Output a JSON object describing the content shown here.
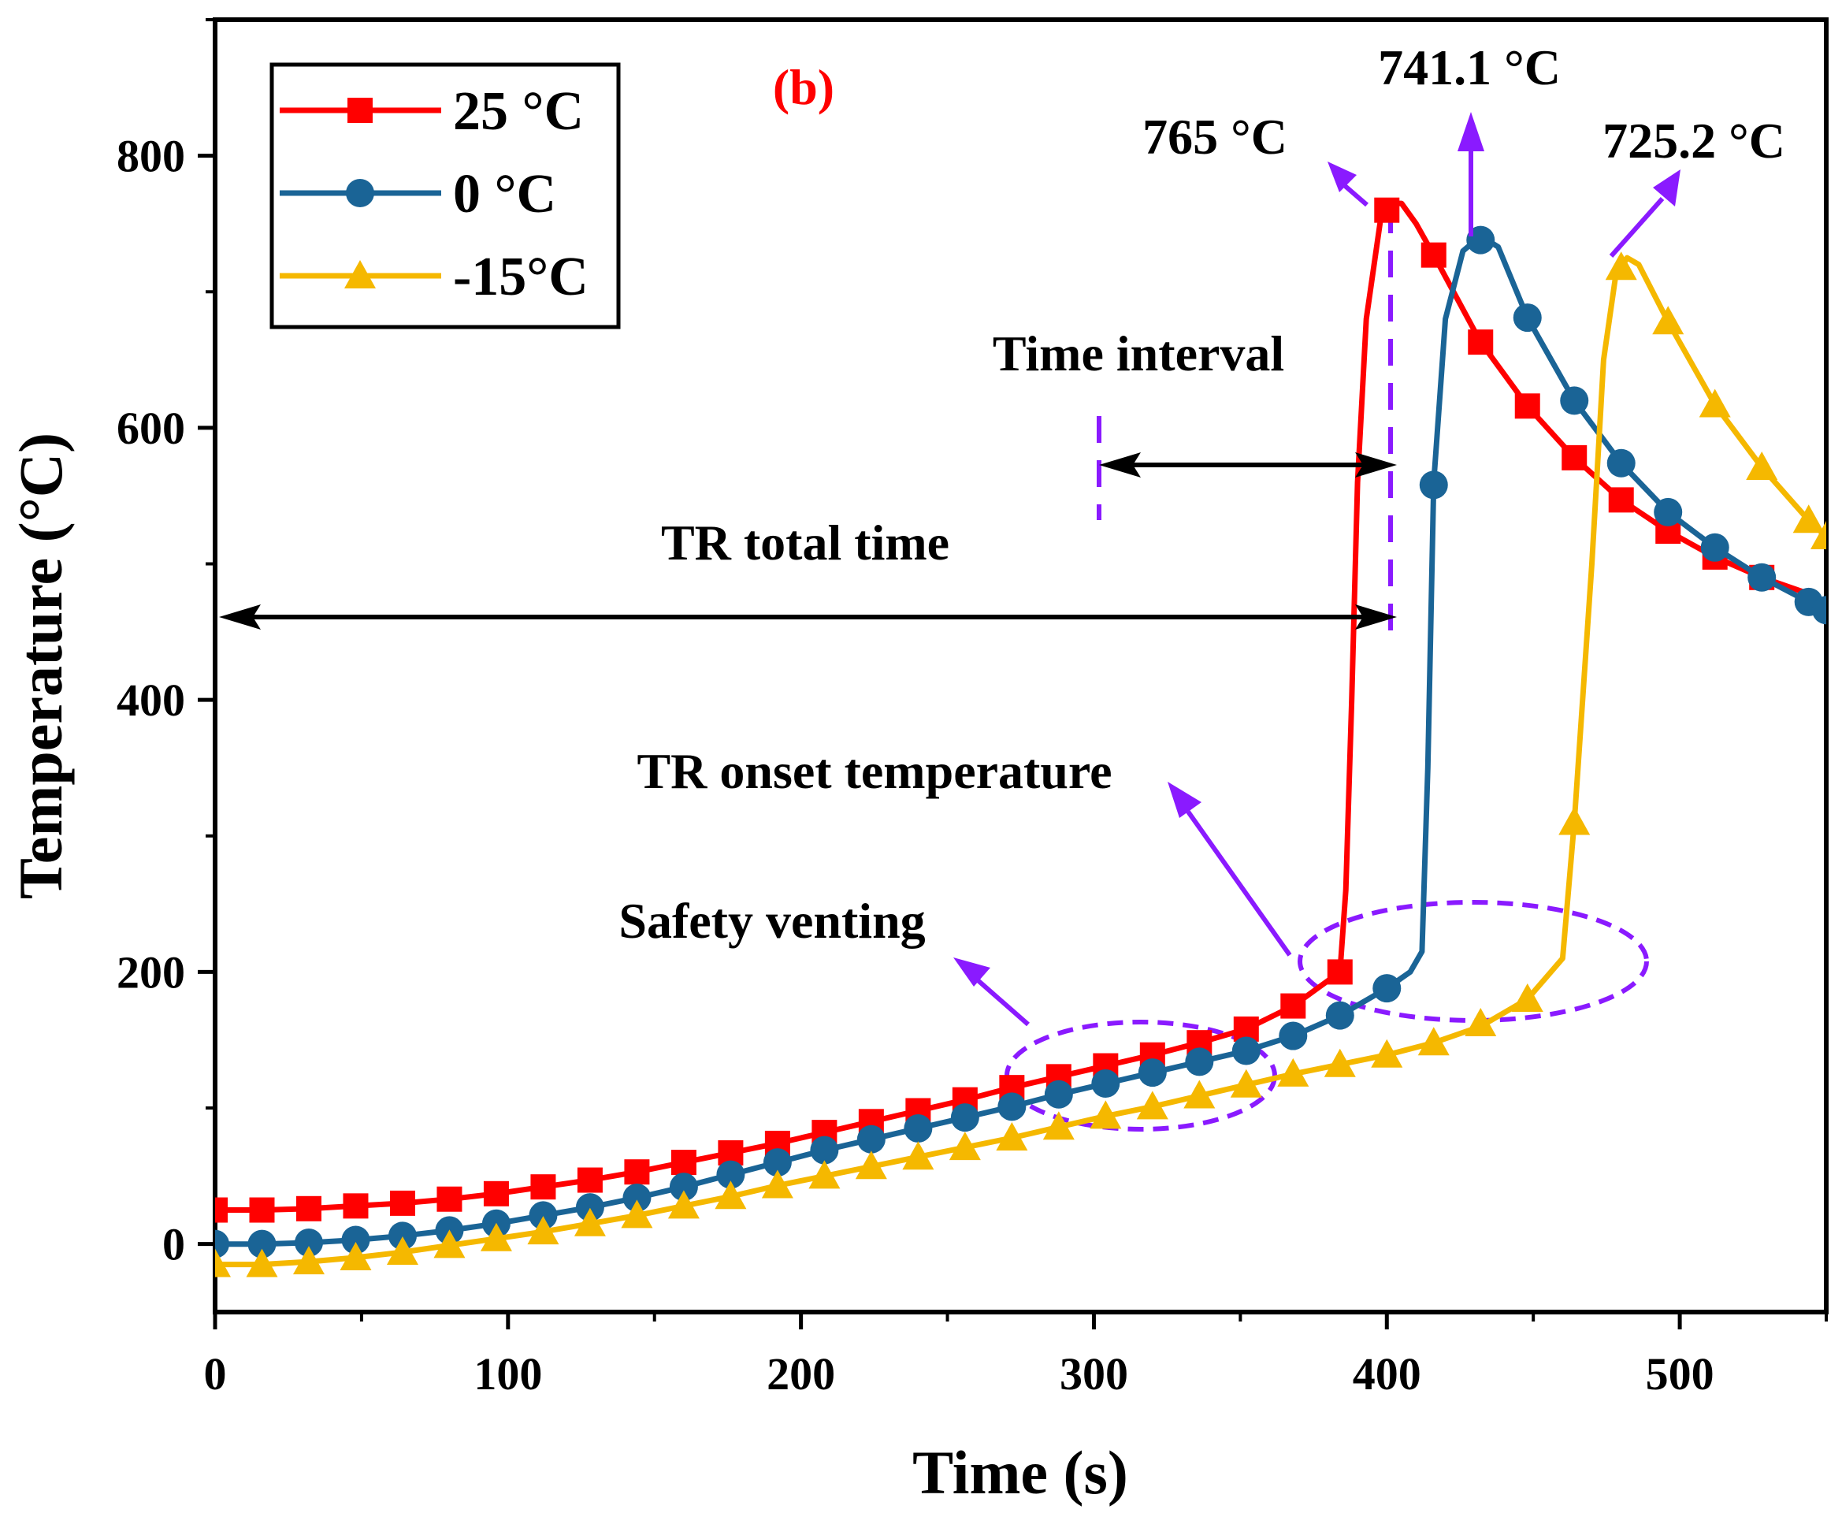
{
  "chart_data": {
    "type": "line",
    "panel_label": "(b)",
    "xlabel": "Time (s)",
    "ylabel": "Temperature (°C)",
    "xlim": [
      0,
      550
    ],
    "ylim": [
      -50,
      900
    ],
    "x_ticks": [
      0,
      100,
      200,
      300,
      400,
      500
    ],
    "y_ticks": [
      0,
      200,
      400,
      600,
      800
    ],
    "legend_position": "top-left",
    "grid": false,
    "series": [
      {
        "name": "25 °C",
        "color": "#ff0000",
        "marker": "square",
        "curve": [
          [
            0,
            25
          ],
          [
            16,
            25
          ],
          [
            32,
            26
          ],
          [
            48,
            28
          ],
          [
            64,
            30
          ],
          [
            80,
            33
          ],
          [
            96,
            37
          ],
          [
            112,
            42
          ],
          [
            128,
            47
          ],
          [
            144,
            53
          ],
          [
            160,
            60
          ],
          [
            176,
            67
          ],
          [
            192,
            74
          ],
          [
            208,
            82
          ],
          [
            224,
            90
          ],
          [
            240,
            98
          ],
          [
            256,
            106
          ],
          [
            272,
            115
          ],
          [
            288,
            123
          ],
          [
            304,
            131
          ],
          [
            320,
            139
          ],
          [
            336,
            148
          ],
          [
            352,
            158
          ],
          [
            368,
            175
          ],
          [
            384,
            200
          ],
          [
            386,
            260
          ],
          [
            388,
            400
          ],
          [
            390,
            560
          ],
          [
            393,
            680
          ],
          [
            398,
            755
          ],
          [
            402,
            765
          ],
          [
            405,
            765
          ],
          [
            410,
            750
          ],
          [
            416,
            727
          ],
          [
            432,
            663
          ],
          [
            448,
            616
          ],
          [
            464,
            578
          ],
          [
            480,
            547
          ],
          [
            496,
            524
          ],
          [
            512,
            505
          ],
          [
            528,
            490
          ],
          [
            544,
            478
          ]
        ],
        "markers": [
          [
            0,
            25
          ],
          [
            16,
            25
          ],
          [
            32,
            26
          ],
          [
            48,
            28
          ],
          [
            64,
            30
          ],
          [
            80,
            33
          ],
          [
            96,
            37
          ],
          [
            112,
            42
          ],
          [
            128,
            47
          ],
          [
            144,
            53
          ],
          [
            160,
            60
          ],
          [
            176,
            67
          ],
          [
            192,
            74
          ],
          [
            208,
            82
          ],
          [
            224,
            90
          ],
          [
            240,
            98
          ],
          [
            256,
            106
          ],
          [
            272,
            115
          ],
          [
            288,
            123
          ],
          [
            304,
            131
          ],
          [
            320,
            139
          ],
          [
            336,
            148
          ],
          [
            352,
            158
          ],
          [
            368,
            175
          ],
          [
            384,
            200
          ],
          [
            400,
            760
          ],
          [
            416,
            727
          ],
          [
            432,
            663
          ],
          [
            448,
            616
          ],
          [
            464,
            578
          ],
          [
            480,
            547
          ],
          [
            496,
            524
          ],
          [
            512,
            505
          ],
          [
            528,
            490
          ]
        ]
      },
      {
        "name": "0 °C",
        "color": "#1a6496",
        "marker": "circle",
        "curve": [
          [
            0,
            0
          ],
          [
            16,
            0
          ],
          [
            32,
            1
          ],
          [
            48,
            3
          ],
          [
            64,
            6
          ],
          [
            80,
            10
          ],
          [
            96,
            15
          ],
          [
            112,
            21
          ],
          [
            128,
            27
          ],
          [
            144,
            34
          ],
          [
            160,
            42
          ],
          [
            176,
            51
          ],
          [
            192,
            60
          ],
          [
            208,
            69
          ],
          [
            224,
            77
          ],
          [
            240,
            85
          ],
          [
            256,
            93
          ],
          [
            272,
            101
          ],
          [
            288,
            110
          ],
          [
            304,
            118
          ],
          [
            320,
            126
          ],
          [
            336,
            134
          ],
          [
            352,
            142
          ],
          [
            368,
            153
          ],
          [
            384,
            168
          ],
          [
            400,
            188
          ],
          [
            408,
            200
          ],
          [
            412,
            215
          ],
          [
            414,
            350
          ],
          [
            416,
            560
          ],
          [
            420,
            680
          ],
          [
            426,
            730
          ],
          [
            432,
            741
          ],
          [
            438,
            733
          ],
          [
            448,
            681
          ],
          [
            464,
            620
          ],
          [
            480,
            574
          ],
          [
            496,
            538
          ],
          [
            512,
            512
          ],
          [
            528,
            490
          ],
          [
            544,
            472
          ],
          [
            550,
            466
          ]
        ],
        "markers": [
          [
            0,
            0
          ],
          [
            16,
            0
          ],
          [
            32,
            1
          ],
          [
            48,
            3
          ],
          [
            64,
            6
          ],
          [
            80,
            10
          ],
          [
            96,
            15
          ],
          [
            112,
            21
          ],
          [
            128,
            27
          ],
          [
            144,
            34
          ],
          [
            160,
            42
          ],
          [
            176,
            51
          ],
          [
            192,
            60
          ],
          [
            208,
            69
          ],
          [
            224,
            77
          ],
          [
            240,
            85
          ],
          [
            256,
            93
          ],
          [
            272,
            101
          ],
          [
            288,
            110
          ],
          [
            304,
            118
          ],
          [
            320,
            126
          ],
          [
            336,
            134
          ],
          [
            352,
            142
          ],
          [
            368,
            153
          ],
          [
            384,
            168
          ],
          [
            400,
            188
          ],
          [
            416,
            558
          ],
          [
            432,
            738
          ],
          [
            448,
            681
          ],
          [
            464,
            620
          ],
          [
            480,
            574
          ],
          [
            496,
            538
          ],
          [
            512,
            512
          ],
          [
            528,
            490
          ],
          [
            544,
            472
          ],
          [
            550,
            466
          ]
        ]
      },
      {
        "name": "-15°C",
        "color": "#f5b800",
        "marker": "triangle",
        "curve": [
          [
            0,
            -15
          ],
          [
            16,
            -15
          ],
          [
            32,
            -13
          ],
          [
            48,
            -10
          ],
          [
            64,
            -6
          ],
          [
            80,
            -1
          ],
          [
            96,
            4
          ],
          [
            112,
            9
          ],
          [
            128,
            15
          ],
          [
            144,
            21
          ],
          [
            160,
            28
          ],
          [
            176,
            35
          ],
          [
            192,
            43
          ],
          [
            208,
            50
          ],
          [
            224,
            57
          ],
          [
            240,
            64
          ],
          [
            256,
            71
          ],
          [
            272,
            78
          ],
          [
            288,
            86
          ],
          [
            304,
            94
          ],
          [
            320,
            101
          ],
          [
            336,
            109
          ],
          [
            352,
            117
          ],
          [
            368,
            125
          ],
          [
            384,
            132
          ],
          [
            400,
            139
          ],
          [
            416,
            148
          ],
          [
            432,
            160
          ],
          [
            448,
            180
          ],
          [
            460,
            210
          ],
          [
            464,
            310
          ],
          [
            470,
            500
          ],
          [
            474,
            650
          ],
          [
            478,
            710
          ],
          [
            482,
            725
          ],
          [
            486,
            720
          ],
          [
            496,
            678
          ],
          [
            512,
            617
          ],
          [
            528,
            571
          ],
          [
            544,
            532
          ],
          [
            550,
            520
          ]
        ],
        "markers": [
          [
            0,
            -15
          ],
          [
            16,
            -15
          ],
          [
            32,
            -13
          ],
          [
            48,
            -10
          ],
          [
            64,
            -6
          ],
          [
            80,
            -1
          ],
          [
            96,
            4
          ],
          [
            112,
            9
          ],
          [
            128,
            15
          ],
          [
            144,
            21
          ],
          [
            160,
            28
          ],
          [
            176,
            35
          ],
          [
            192,
            43
          ],
          [
            208,
            50
          ],
          [
            224,
            57
          ],
          [
            240,
            64
          ],
          [
            256,
            71
          ],
          [
            272,
            78
          ],
          [
            288,
            86
          ],
          [
            304,
            94
          ],
          [
            320,
            101
          ],
          [
            336,
            109
          ],
          [
            352,
            117
          ],
          [
            368,
            125
          ],
          [
            384,
            132
          ],
          [
            400,
            139
          ],
          [
            416,
            148
          ],
          [
            432,
            162
          ],
          [
            448,
            180
          ],
          [
            464,
            310
          ],
          [
            480,
            718
          ],
          [
            496,
            678
          ],
          [
            512,
            617
          ],
          [
            528,
            571
          ],
          [
            544,
            532
          ],
          [
            550,
            520
          ]
        ]
      }
    ],
    "annotations": {
      "peak_25": "765 °C",
      "peak_0": "741.1 °C",
      "peak_minus15": "725.2 °C",
      "time_interval": "Time interval",
      "tr_total_time": "TR total time",
      "tr_onset": "TR onset temperature",
      "safety_venting": "Safety venting"
    },
    "annotation_color": "#8a1aff"
  }
}
